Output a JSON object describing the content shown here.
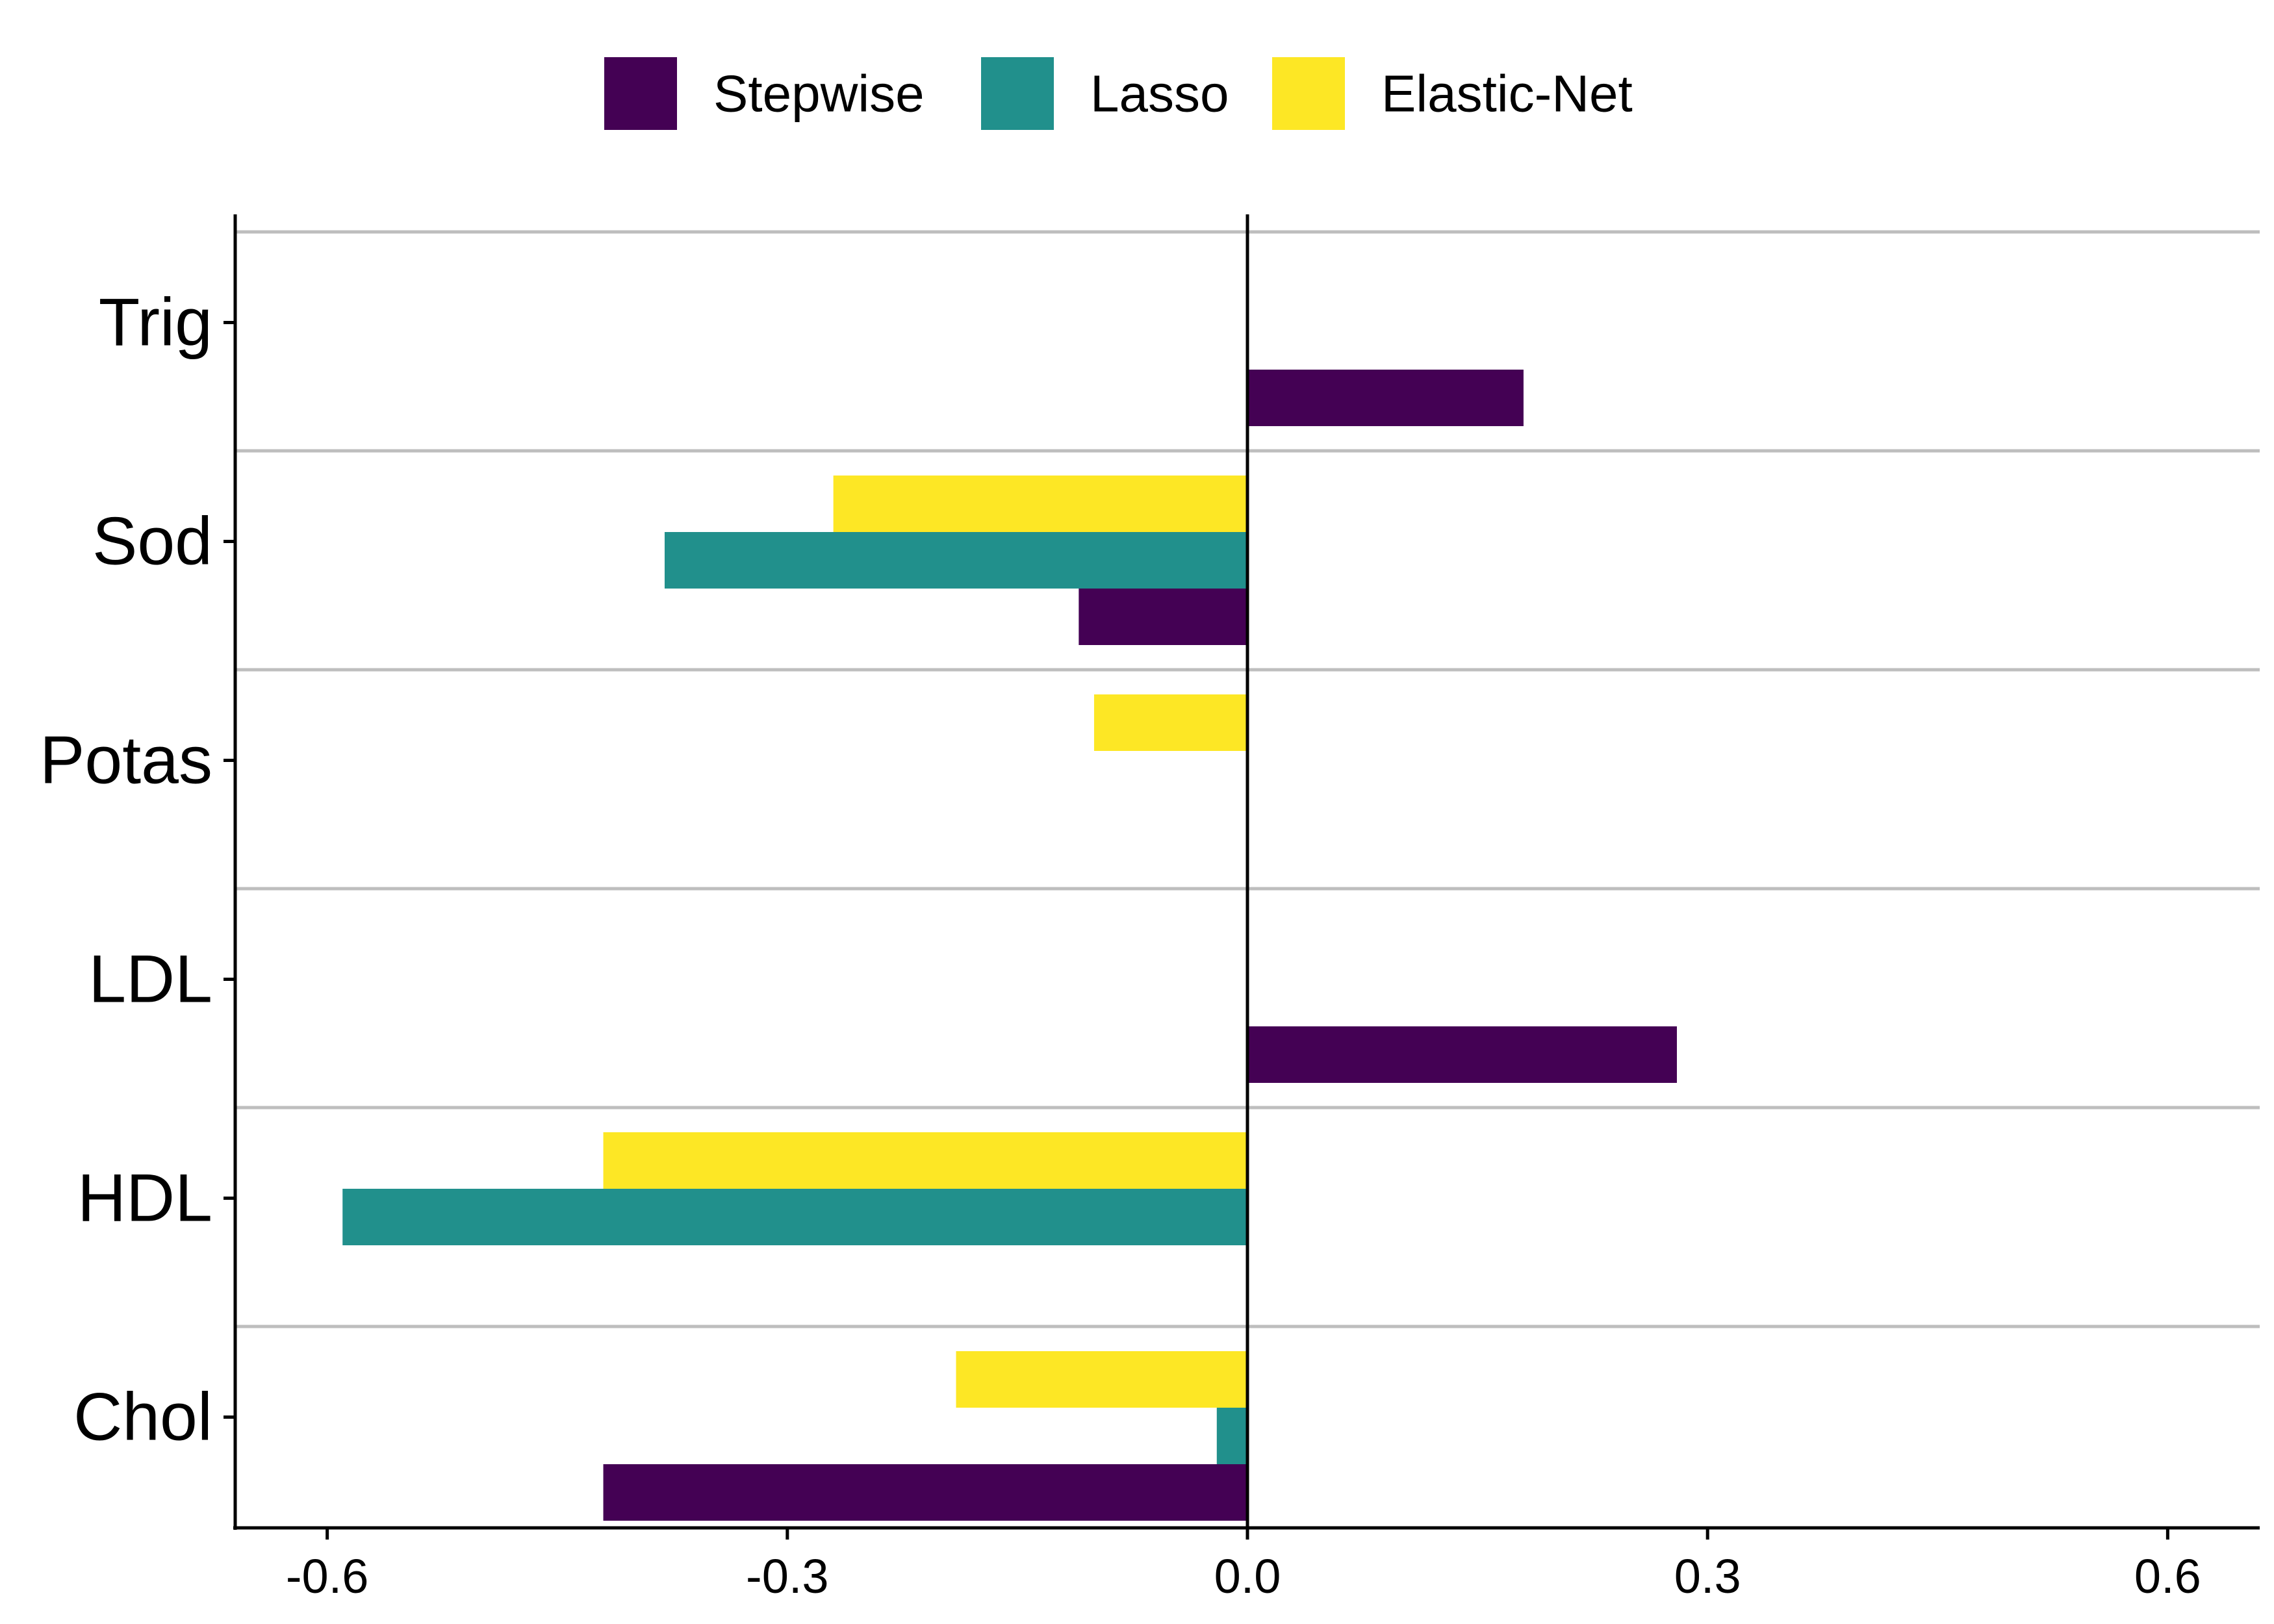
{
  "chart_data": {
    "type": "bar",
    "orientation": "horizontal",
    "categories": [
      "Trig",
      "Sod",
      "Potas",
      "LDL",
      "HDL",
      "Chol"
    ],
    "series": [
      {
        "name": "Stepwise",
        "color": "#440154",
        "values": [
          0.18,
          -0.11,
          0,
          0.28,
          0,
          -0.42
        ]
      },
      {
        "name": "Lasso",
        "color": "#21908C",
        "values": [
          0,
          -0.38,
          0,
          0,
          -0.59,
          -0.02
        ]
      },
      {
        "name": "Elastic-Net",
        "color": "#FDE725",
        "values": [
          0,
          -0.27,
          -0.1,
          0,
          -0.42,
          -0.19
        ]
      }
    ],
    "xticks": [
      "-0.6",
      "-0.3",
      "0.0",
      "0.3",
      "0.6"
    ],
    "xtick_values": [
      -0.6,
      -0.3,
      0.0,
      0.3,
      0.6
    ],
    "xlim": [
      -0.66,
      0.66
    ],
    "title": "",
    "xlabel": "",
    "ylabel": "",
    "legend_position": "top",
    "grid": "horizontal separators between categories",
    "zero_line": true
  }
}
